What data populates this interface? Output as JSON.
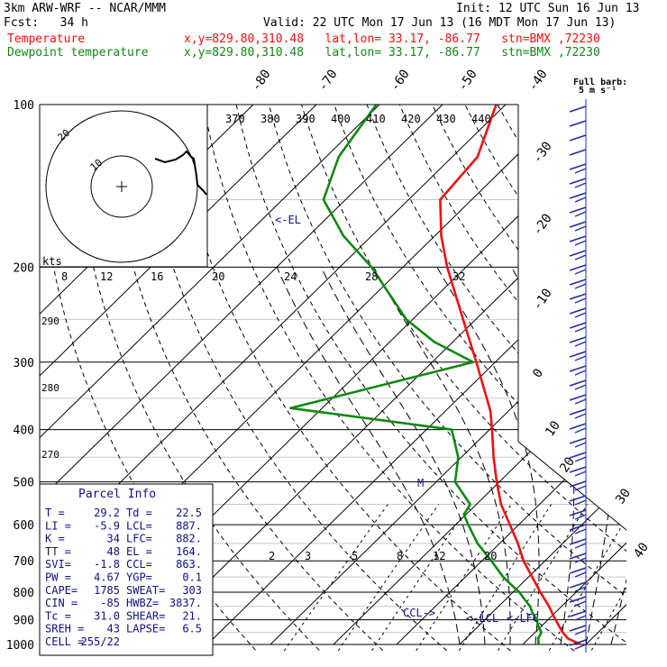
{
  "header": {
    "model": "3km ARW-WRF -- NCAR/MMM",
    "init": "Init: 12 UTC Sun 16 Jun 13",
    "fcst": "Fcst:   34 h",
    "valid": "Valid: 22 UTC Mon 17 Jun 13 (16 MDT Mon 17 Jun 13)",
    "temp_line": {
      "label": "Temperature",
      "info": "x,y=829.80,310.48   lat,lon= 33.17, -86.77   stn=BMX ,72230"
    },
    "dew_line": {
      "label": "Dewpoint temperature",
      "info": "x,y=829.80,310.48   lat,lon= 33.17, -86.77   stn=BMX ,72230"
    },
    "colors": {
      "temperature": "#ee1111",
      "dewpoint": "#118811",
      "annotation": "#101080",
      "barb": "#2030a0"
    }
  },
  "wind_legend": {
    "title": "Full barb:",
    "subtitle": "5 m s⁻¹"
  },
  "hodograph": {
    "units": "kts",
    "ring_labels": [
      "10",
      "20"
    ]
  },
  "chart_data": {
    "type": "line",
    "pressure_levels": [
      "100",
      "200",
      "300",
      "400",
      "500",
      "600",
      "700",
      "800",
      "900",
      "1000"
    ],
    "temperature_labels": [
      "-80",
      "-70",
      "-60",
      "-50",
      "-40",
      "-30",
      "-20",
      "-10",
      "0",
      "10",
      "20",
      "30",
      "40"
    ],
    "theta_labels": [
      "370",
      "380",
      "390",
      "400",
      "410",
      "420",
      "430",
      "440"
    ],
    "theta_e_side_labels": [
      "290",
      "280",
      "270"
    ],
    "mixing_ratio_labels": [
      "2",
      "3",
      "5",
      "8",
      "12",
      "20"
    ],
    "wetbulb_labels": [
      "8",
      "12",
      "16",
      "20",
      "24",
      "28",
      "32"
    ],
    "series": [
      {
        "name": "Temperature",
        "p": [
          1000,
          975,
          950,
          925,
          900,
          875,
          850,
          825,
          800,
          775,
          750,
          700,
          650,
          600,
          550,
          500,
          450,
          400,
          370,
          300,
          250,
          200,
          175,
          150,
          125,
          100
        ],
        "t": [
          29.2,
          26.2,
          24.4,
          22.8,
          21.2,
          19.6,
          18.0,
          16.2,
          14.3,
          12.5,
          10.6,
          6.6,
          2.9,
          -1.4,
          -6.1,
          -10.4,
          -14.9,
          -19.6,
          -22.8,
          -33.0,
          -42.0,
          -53.0,
          -59.0,
          -65.0,
          -66.0,
          -71.5
        ]
      },
      {
        "name": "Dewpoint temperature",
        "p": [
          1000,
          975,
          950,
          925,
          900,
          875,
          850,
          825,
          800,
          775,
          750,
          700,
          650,
          600,
          575,
          550,
          500,
          450,
          400,
          365,
          300,
          275,
          250,
          200,
          175,
          150,
          125,
          100
        ],
        "t": [
          22.5,
          21.5,
          21.0,
          19.5,
          18.2,
          16.5,
          15.0,
          13.0,
          11.0,
          8.5,
          6.0,
          1.5,
          -3.5,
          -8.0,
          -10.3,
          -11.0,
          -17.0,
          -20.5,
          -26.0,
          -55.0,
          -33.5,
          -43.0,
          -51.0,
          -65.0,
          -74.5,
          -83.5,
          -88.0,
          -90.5
        ]
      }
    ],
    "annotations": {
      "el": "EL",
      "lcl": "LCL",
      "lfc": "LFC",
      "ccl": "CCL"
    }
  },
  "parcel_info": {
    "title": "Parcel Info",
    "rows": [
      [
        "T  =",
        "29.2",
        "Td =",
        "22.5"
      ],
      [
        "LI =",
        "-5.9",
        "LCL=",
        "887."
      ],
      [
        "K  =",
        "34",
        "LFC=",
        "882."
      ],
      [
        "TT =",
        "48",
        "EL =",
        "164."
      ],
      [
        "SVI=",
        "-1.8",
        "CCL=",
        "863."
      ],
      [
        "PW =",
        "4.67",
        "YGP=",
        "0.1"
      ],
      [
        "CAPE=",
        "1785",
        "SWEAT=",
        "303"
      ],
      [
        "CIN =",
        "-85",
        "HWBZ=",
        "3837."
      ],
      [
        "Tc =",
        "31.0",
        "SHEAR=",
        "21."
      ],
      [
        "SREH =",
        "43",
        "LAPSE=",
        "6.5"
      ],
      [
        "CELL =",
        "255/22",
        "",
        ""
      ]
    ]
  }
}
